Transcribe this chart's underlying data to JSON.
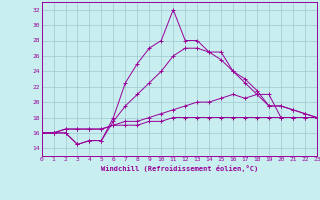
{
  "xlabel": "Windchill (Refroidissement éolien,°C)",
  "bg_color": "#c8eef0",
  "grid_color": "#a0c8d0",
  "line_color": "#990099",
  "xlim": [
    0,
    23
  ],
  "ylim": [
    13,
    33
  ],
  "yticks": [
    14,
    16,
    18,
    20,
    22,
    24,
    26,
    28,
    30,
    32
  ],
  "xticks": [
    0,
    1,
    2,
    3,
    4,
    5,
    6,
    7,
    8,
    9,
    10,
    11,
    12,
    13,
    14,
    15,
    16,
    17,
    18,
    19,
    20,
    21,
    22,
    23
  ],
  "series": [
    [
      16.0,
      16.0,
      16.0,
      14.5,
      15.0,
      15.0,
      18.0,
      22.5,
      25.0,
      27.0,
      28.0,
      32.0,
      28.0,
      28.0,
      26.5,
      26.5,
      24.0,
      22.5,
      21.0,
      21.0,
      18.0,
      18.0,
      18.0,
      18.0
    ],
    [
      16.0,
      16.0,
      16.0,
      14.5,
      15.0,
      15.0,
      17.5,
      19.5,
      21.0,
      22.5,
      24.0,
      26.0,
      27.0,
      27.0,
      26.5,
      25.5,
      24.0,
      23.0,
      21.5,
      19.5,
      19.5,
      19.0,
      18.5,
      18.0
    ],
    [
      16.0,
      16.0,
      16.5,
      16.5,
      16.5,
      16.5,
      17.0,
      17.5,
      17.5,
      18.0,
      18.5,
      19.0,
      19.5,
      20.0,
      20.0,
      20.5,
      21.0,
      20.5,
      21.0,
      19.5,
      19.5,
      19.0,
      18.5,
      18.0
    ],
    [
      16.0,
      16.0,
      16.5,
      16.5,
      16.5,
      16.5,
      17.0,
      17.0,
      17.0,
      17.5,
      17.5,
      18.0,
      18.0,
      18.0,
      18.0,
      18.0,
      18.0,
      18.0,
      18.0,
      18.0,
      18.0,
      18.0,
      18.0,
      18.0
    ]
  ]
}
